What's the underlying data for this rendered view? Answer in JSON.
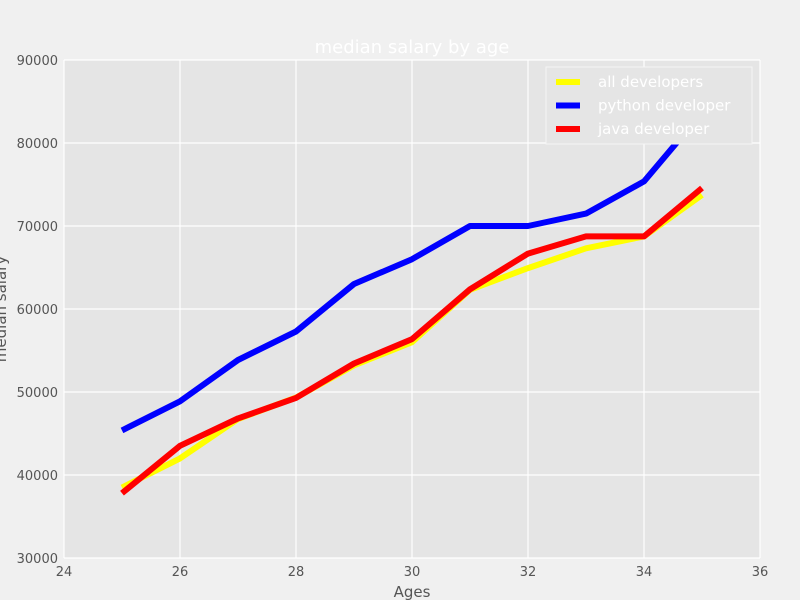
{
  "chart_data": {
    "type": "line",
    "title": "median salary by age",
    "xlabel": "Ages",
    "ylabel": "median salary",
    "xlim": [
      24,
      36
    ],
    "ylim": [
      30000,
      90000
    ],
    "xticks": [
      24,
      26,
      28,
      30,
      32,
      34,
      36
    ],
    "yticks": [
      30000,
      40000,
      50000,
      60000,
      70000,
      80000,
      90000
    ],
    "grid": true,
    "legend_position": "top-right",
    "x": [
      25,
      26,
      27,
      28,
      29,
      30,
      31,
      32,
      33,
      34,
      35
    ],
    "series": [
      {
        "name": "all developers",
        "color": "#ffff00",
        "values": [
          38496,
          42000,
          46752,
          49320,
          53200,
          56000,
          62316,
          64928,
          67317,
          68748,
          73752
        ]
      },
      {
        "name": "python developer",
        "color": "#0000ff",
        "values": [
          45372,
          48876,
          53850,
          57287,
          63016,
          65998,
          70003,
          70000,
          71496,
          75370,
          83640
        ]
      },
      {
        "name": "java developer",
        "color": "#ff0000",
        "values": [
          37810,
          43515,
          46823,
          49293,
          53437,
          56373,
          62375,
          66674,
          68745,
          68746,
          74583
        ]
      }
    ]
  }
}
